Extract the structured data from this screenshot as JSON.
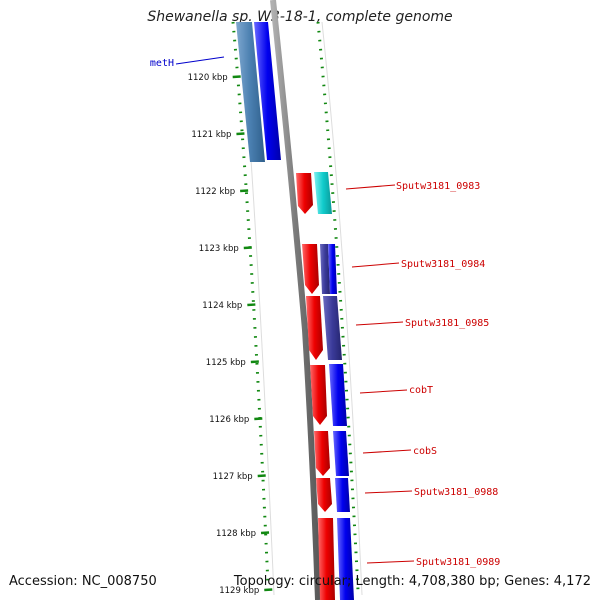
{
  "title": "Shewanella sp. W3-18-1, complete genome",
  "accession": "Accession: NC_008750",
  "topology": "Topology: circular; Length: 4,708,380 bp; Genes: 4,172",
  "colors": {
    "forward_gene": "#0000ee",
    "reverse_gene": "#ee0000",
    "forward_label": "#0000cc",
    "reverse_label": "#cc0000",
    "cyan_gene": "#11cccc",
    "steel_gene": "#4a7fb0",
    "slate_gene": "#3a3a99",
    "tick_mark": "#118811",
    "backbone": "#888888"
  },
  "ticks": [
    "1120 kbp",
    "1121 kbp",
    "1122 kbp",
    "1123 kbp",
    "1124 kbp",
    "1125 kbp",
    "1126 kbp",
    "1127 kbp",
    "1128 kbp",
    "1129 kbp"
  ],
  "gene_labels": [
    {
      "text": "metH",
      "strand": "forward"
    },
    {
      "text": "Sputw3181_0983",
      "strand": "reverse"
    },
    {
      "text": "Sputw3181_0984",
      "strand": "reverse"
    },
    {
      "text": "Sputw3181_0985",
      "strand": "reverse"
    },
    {
      "text": "cobT",
      "strand": "reverse"
    },
    {
      "text": "cobS",
      "strand": "reverse"
    },
    {
      "text": "Sputw3181_0988",
      "strand": "reverse"
    },
    {
      "text": "Sputw3181_0989",
      "strand": "reverse"
    }
  ]
}
